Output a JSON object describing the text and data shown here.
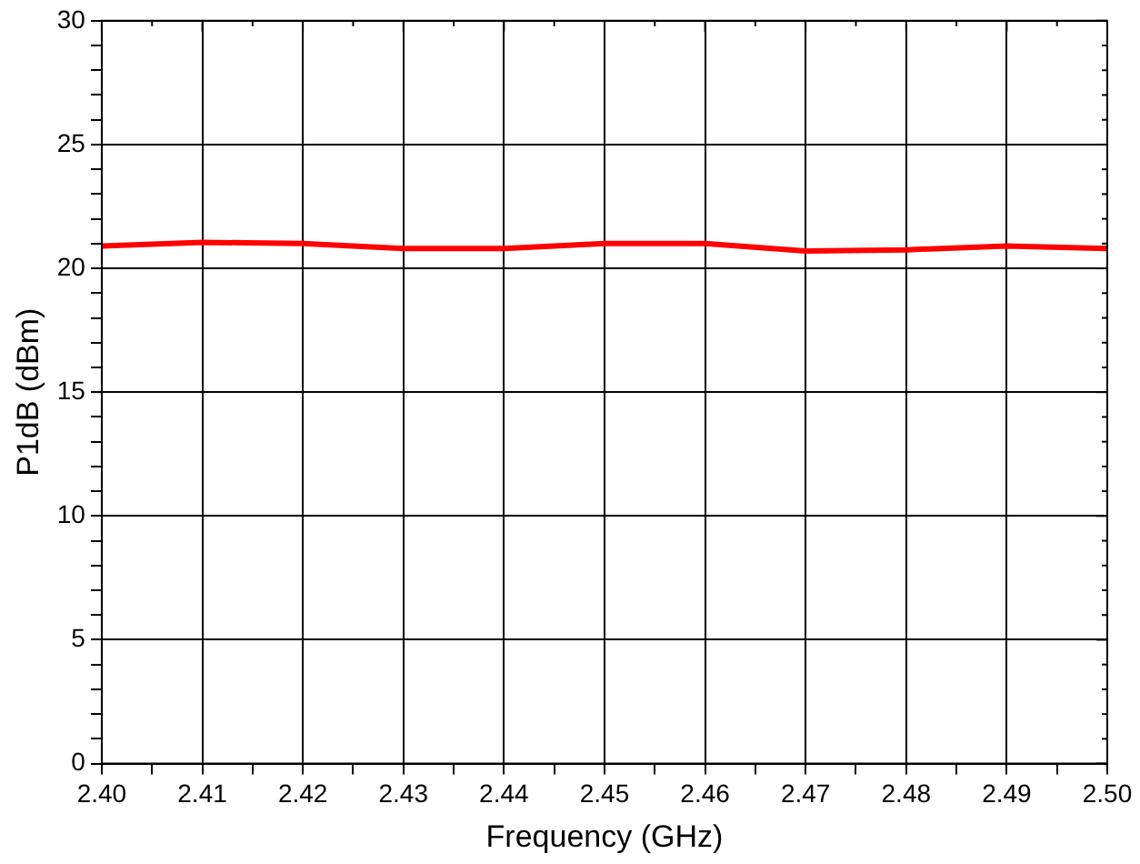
{
  "chart_data": {
    "type": "line",
    "xlabel": "Frequency (GHz)",
    "ylabel": "P1dB (dBm)",
    "x": [
      2.4,
      2.41,
      2.42,
      2.43,
      2.44,
      2.45,
      2.46,
      2.47,
      2.48,
      2.49,
      2.5
    ],
    "series": [
      {
        "color": "#ff0000",
        "values": [
          20.9,
          21.05,
          21.0,
          20.8,
          20.8,
          21.0,
          21.0,
          20.7,
          20.75,
          20.9,
          20.8
        ]
      }
    ],
    "xlim": [
      2.4,
      2.5
    ],
    "xticks": [
      {
        "value": 2.4,
        "label": "2.40"
      },
      {
        "value": 2.405,
        "label": null
      },
      {
        "value": 2.41,
        "label": "2.41"
      },
      {
        "value": 2.415,
        "label": null
      },
      {
        "value": 2.42,
        "label": "2.42"
      },
      {
        "value": 2.425,
        "label": null
      },
      {
        "value": 2.43,
        "label": "2.43"
      },
      {
        "value": 2.435,
        "label": null
      },
      {
        "value": 2.44,
        "label": "2.44"
      },
      {
        "value": 2.445,
        "label": null
      },
      {
        "value": 2.45,
        "label": "2.45"
      },
      {
        "value": 2.455,
        "label": null
      },
      {
        "value": 2.46,
        "label": "2.46"
      },
      {
        "value": 2.465,
        "label": null
      },
      {
        "value": 2.47,
        "label": "2.47"
      },
      {
        "value": 2.475,
        "label": null
      },
      {
        "value": 2.48,
        "label": "2.48"
      },
      {
        "value": 2.485,
        "label": null
      },
      {
        "value": 2.49,
        "label": "2.49"
      },
      {
        "value": 2.495,
        "label": null
      },
      {
        "value": 2.5,
        "label": "2.50"
      }
    ],
    "ylim": [
      0,
      30
    ],
    "yticks": [
      0,
      {
        "value": 1,
        "label": null
      },
      {
        "value": 2,
        "label": null
      },
      {
        "value": 3,
        "label": null
      },
      {
        "value": 4,
        "label": null
      },
      5,
      {
        "value": 6,
        "label": null
      },
      {
        "value": 7,
        "label": null
      },
      {
        "value": 8,
        "label": null
      },
      {
        "value": 9,
        "label": null
      },
      10,
      {
        "value": 11,
        "label": null
      },
      {
        "value": 12,
        "label": null
      },
      {
        "value": 13,
        "label": null
      },
      {
        "value": 14,
        "label": null
      },
      15,
      {
        "value": 16,
        "label": null
      },
      {
        "value": 17,
        "label": null
      },
      {
        "value": 18,
        "label": null
      },
      {
        "value": 19,
        "label": null
      },
      20,
      {
        "value": 21,
        "label": null
      },
      {
        "value": 22,
        "label": null
      },
      {
        "value": 23,
        "label": null
      },
      {
        "value": 24,
        "label": null
      },
      25,
      {
        "value": 26,
        "label": null
      },
      {
        "value": 27,
        "label": null
      },
      {
        "value": 28,
        "label": null
      },
      {
        "value": 29,
        "label": null
      },
      30
    ],
    "grid": true,
    "legend": false,
    "marker": "none",
    "line_style": "solid"
  }
}
